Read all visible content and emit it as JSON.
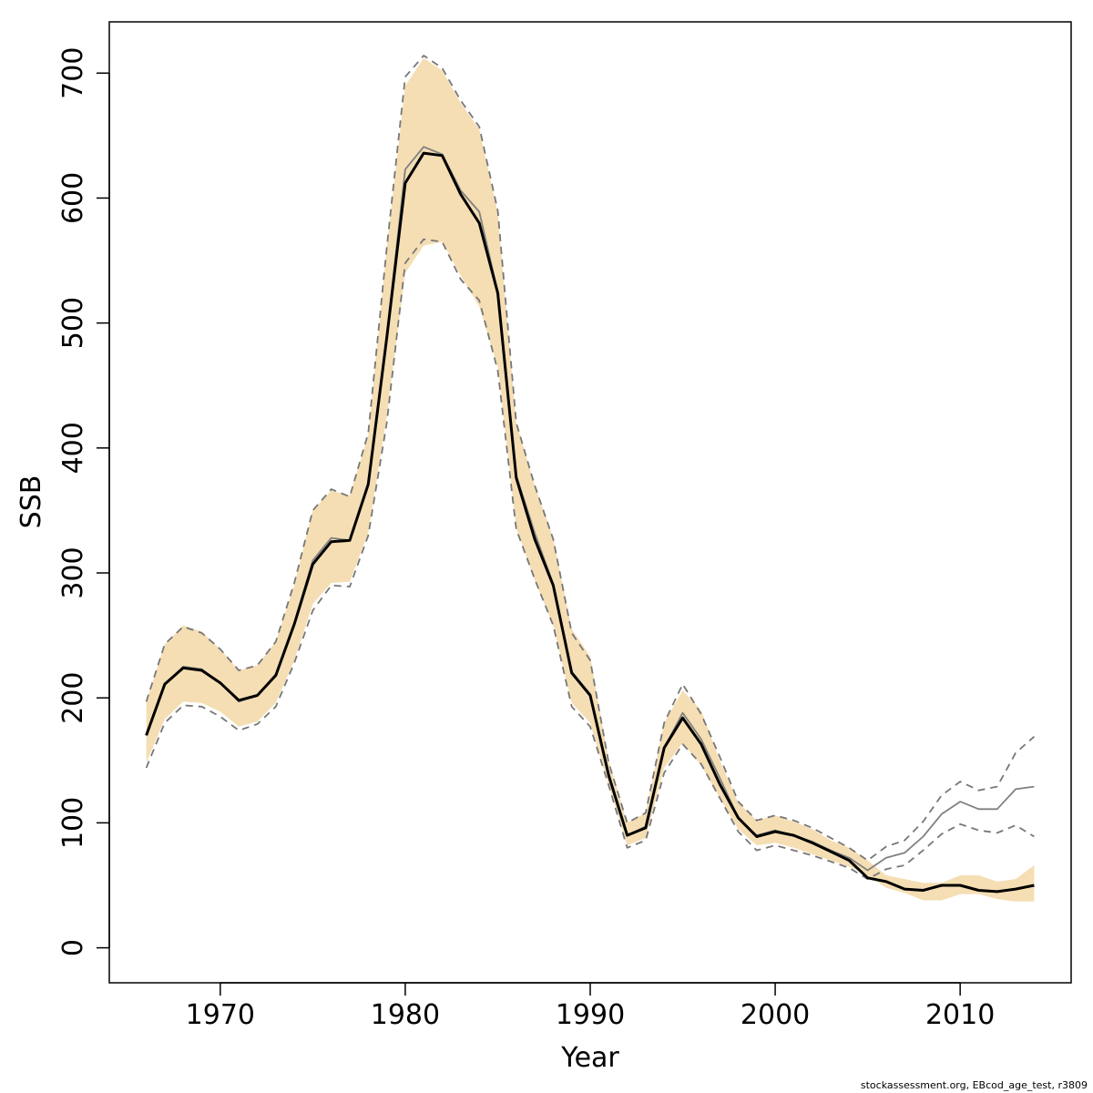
{
  "chart_data": {
    "type": "line",
    "title": "",
    "xlabel": "Year",
    "ylabel": "SSB",
    "xlim": [
      1964,
      2016
    ],
    "ylim": [
      -28,
      741
    ],
    "xticks": [
      1970,
      1980,
      1990,
      2000,
      2010
    ],
    "yticks": [
      0,
      100,
      200,
      300,
      400,
      500,
      600,
      700
    ],
    "grid": false,
    "band_color": "#f5deb3",
    "x": [
      1966,
      1967,
      1968,
      1969,
      1970,
      1971,
      1972,
      1973,
      1974,
      1975,
      1976,
      1977,
      1978,
      1979,
      1980,
      1981,
      1982,
      1983,
      1984,
      1985,
      1986,
      1987,
      1988,
      1989,
      1990,
      1991,
      1992,
      1993,
      1994,
      1995,
      1996,
      1997,
      1998,
      1999,
      2000,
      2001,
      2002,
      2003,
      2004,
      2005,
      2006,
      2007,
      2008,
      2009,
      2010,
      2011,
      2012,
      2013,
      2014
    ],
    "series": [
      {
        "role": "band",
        "lower": [
          148,
          183,
          197,
          196,
          189,
          177,
          181,
          196,
          230,
          275,
          292,
          293,
          332,
          425,
          540,
          562,
          565,
          538,
          513,
          465,
          336,
          294,
          258,
          196,
          180,
          130,
          82,
          88,
          144,
          164,
          146,
          120,
          95,
          82,
          84,
          80,
          75,
          70,
          65,
          58,
          48,
          44,
          38,
          38,
          43,
          43,
          39,
          37,
          37
        ],
        "upper": [
          197,
          243,
          258,
          253,
          239,
          222,
          226,
          245,
          290,
          350,
          366,
          362,
          410,
          560,
          690,
          712,
          702,
          676,
          655,
          588,
          420,
          370,
          328,
          255,
          233,
          150,
          100,
          108,
          180,
          206,
          190,
          150,
          116,
          102,
          106,
          101,
          95,
          86,
          80,
          70,
          58,
          55,
          52,
          52,
          58,
          58,
          53,
          55,
          66
        ]
      },
      {
        "role": "retro-upper",
        "style": "dashed",
        "color": "#777777",
        "values": [
          197,
          243,
          257,
          252,
          239,
          222,
          226,
          245,
          292,
          350,
          367,
          361,
          412,
          560,
          697,
          714,
          704,
          678,
          657,
          590,
          420,
          370,
          327,
          252,
          230,
          148,
          100,
          108,
          180,
          211,
          187,
          153,
          117,
          102,
          106,
          102,
          96,
          88,
          80,
          70,
          81,
          86,
          101,
          122,
          133,
          126,
          129,
          156,
          169
        ]
      },
      {
        "role": "retro-lower",
        "style": "dashed",
        "color": "#777777",
        "values": [
          144,
          180,
          194,
          193,
          185,
          174,
          179,
          193,
          228,
          270,
          290,
          289,
          330,
          420,
          548,
          567,
          565,
          535,
          518,
          462,
          335,
          295,
          258,
          193,
          177,
          130,
          80,
          86,
          140,
          163,
          147,
          120,
          93,
          78,
          82,
          78,
          74,
          69,
          64,
          55,
          63,
          66,
          78,
          91,
          99,
          94,
          92,
          98,
          89
        ]
      },
      {
        "role": "retro-estimate",
        "style": "solid",
        "color": "#808080",
        "values": [
          171,
          211,
          225,
          223,
          212,
          197,
          202,
          219,
          260,
          310,
          328,
          326,
          370,
          490,
          623,
          641,
          635,
          606,
          589,
          525,
          378,
          332,
          291,
          221,
          203,
          139,
          90,
          97,
          160,
          188,
          167,
          136,
          104,
          90,
          94,
          90,
          85,
          78,
          72,
          62,
          72,
          76,
          89,
          107,
          117,
          111,
          111,
          127,
          129
        ]
      },
      {
        "role": "estimate",
        "style": "solid",
        "color": "#000000",
        "values": [
          170,
          211,
          224,
          222,
          212,
          198,
          202,
          218,
          259,
          307,
          325,
          326,
          371,
          488,
          612,
          636,
          634,
          603,
          580,
          524,
          376,
          327,
          290,
          220,
          202,
          138,
          90,
          96,
          160,
          184,
          163,
          131,
          104,
          89,
          93,
          90,
          84,
          77,
          70,
          56,
          53,
          47,
          46,
          50,
          50,
          46,
          45,
          47,
          50
        ]
      }
    ]
  },
  "footnote": "stockassessment.org, EBcod_age_test, r3809"
}
